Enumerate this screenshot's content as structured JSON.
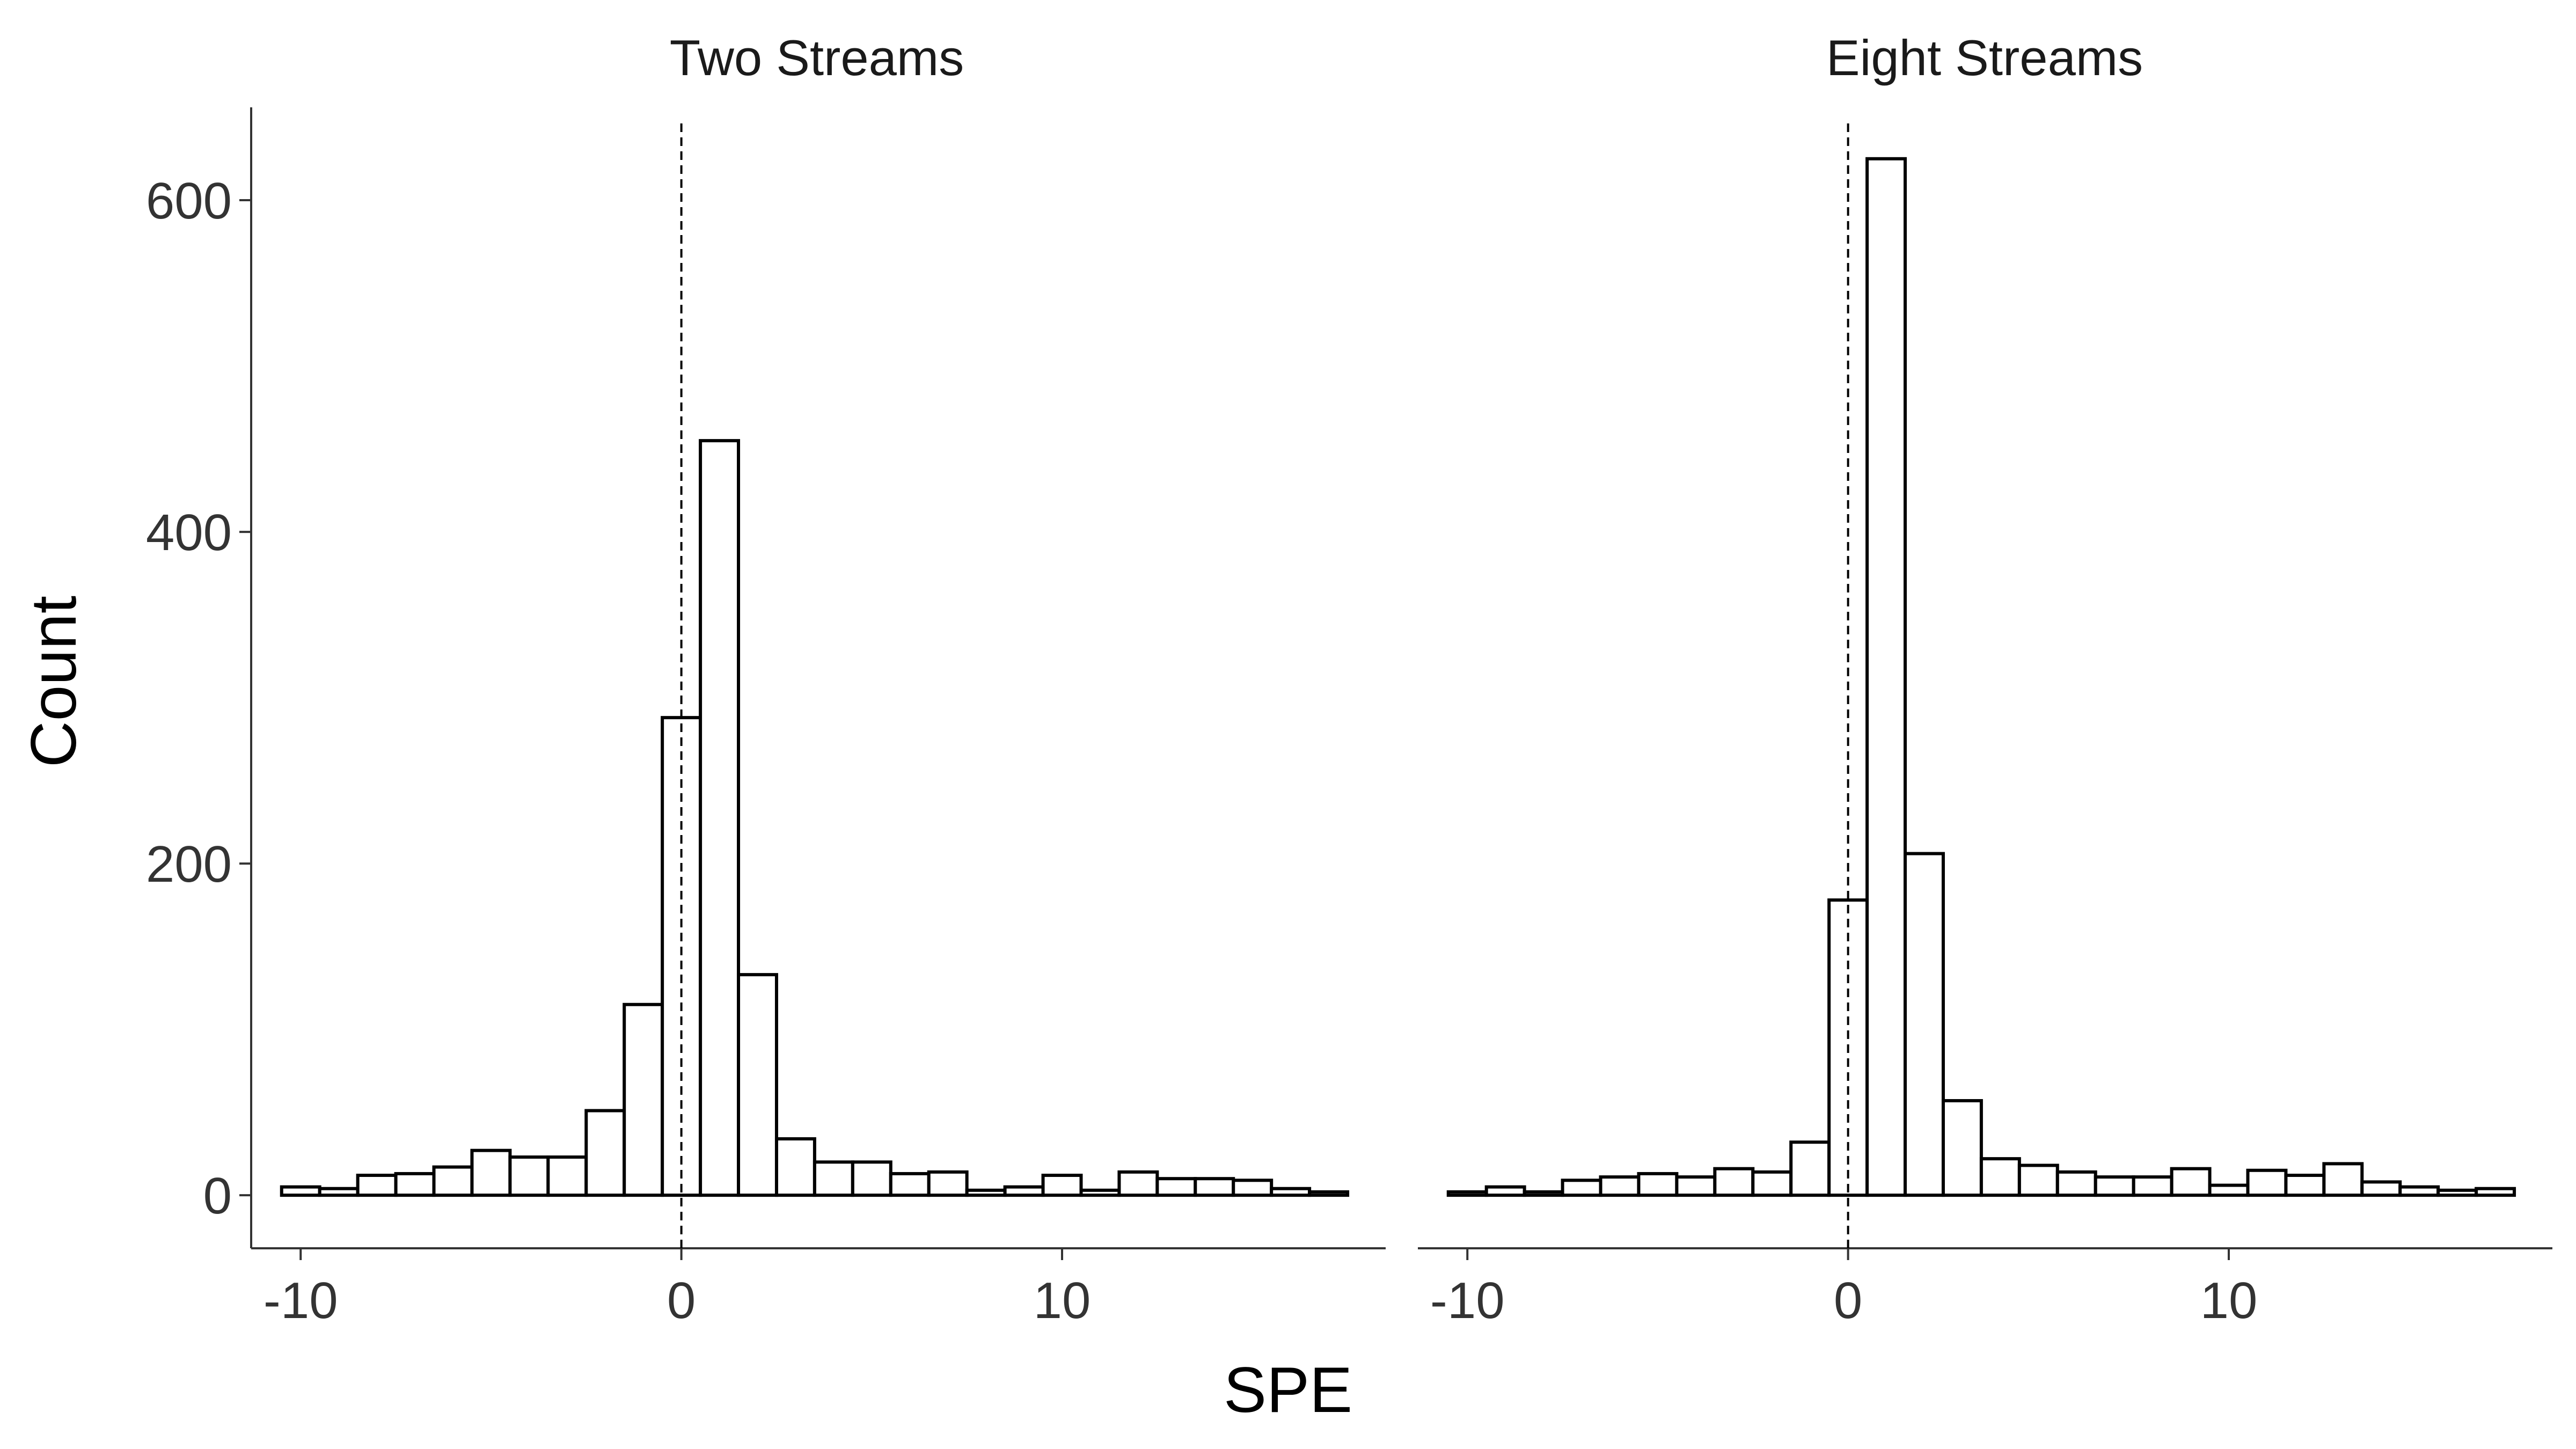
{
  "colors": {
    "bar_fill": "#ffffff",
    "bar_stroke": "#000000",
    "axis": "#333333",
    "tick_text": "#333333",
    "reference_line": "#000000"
  },
  "chart_data": {
    "type": "bar",
    "xlabel": "SPE",
    "ylabel": "Count",
    "grid": false,
    "xlim": [
      -11.3,
      18.5
    ],
    "ylim": [
      -32,
      656
    ],
    "x_ticks": [
      -10,
      0,
      10
    ],
    "x_tick_labels": [
      "-10",
      "0",
      "10"
    ],
    "y_ticks": [
      0,
      200,
      400,
      600
    ],
    "y_tick_labels": [
      "0",
      "200",
      "400",
      "600"
    ],
    "bin_width": 1,
    "reference_line": {
      "x": 0,
      "style": "dashed"
    },
    "panels": [
      {
        "title": "Two Streams",
        "bin_centers": [
          -10,
          -9,
          -8,
          -7,
          -6,
          -5,
          -4,
          -3,
          -2,
          -1,
          0,
          1,
          2,
          3,
          4,
          5,
          6,
          7,
          8,
          9,
          10,
          11,
          12,
          13,
          14,
          15,
          16,
          17
        ],
        "values": [
          5,
          4,
          12,
          13,
          17,
          27,
          23,
          23,
          51,
          115,
          288,
          455,
          133,
          34,
          20,
          20,
          13,
          14,
          3,
          5,
          12,
          3,
          14,
          10,
          10,
          9,
          4,
          2
        ]
      },
      {
        "title": "Eight Streams",
        "bin_centers": [
          -10,
          -9,
          -8,
          -7,
          -6,
          -5,
          -4,
          -3,
          -2,
          -1,
          0,
          1,
          2,
          3,
          4,
          5,
          6,
          7,
          8,
          9,
          10,
          11,
          12,
          13,
          14,
          15,
          16,
          17
        ],
        "values": [
          2,
          5,
          2,
          9,
          11,
          13,
          11,
          16,
          14,
          32,
          178,
          625,
          206,
          57,
          22,
          18,
          14,
          11,
          11,
          16,
          6,
          15,
          12,
          19,
          8,
          5,
          3,
          4
        ]
      }
    ]
  }
}
